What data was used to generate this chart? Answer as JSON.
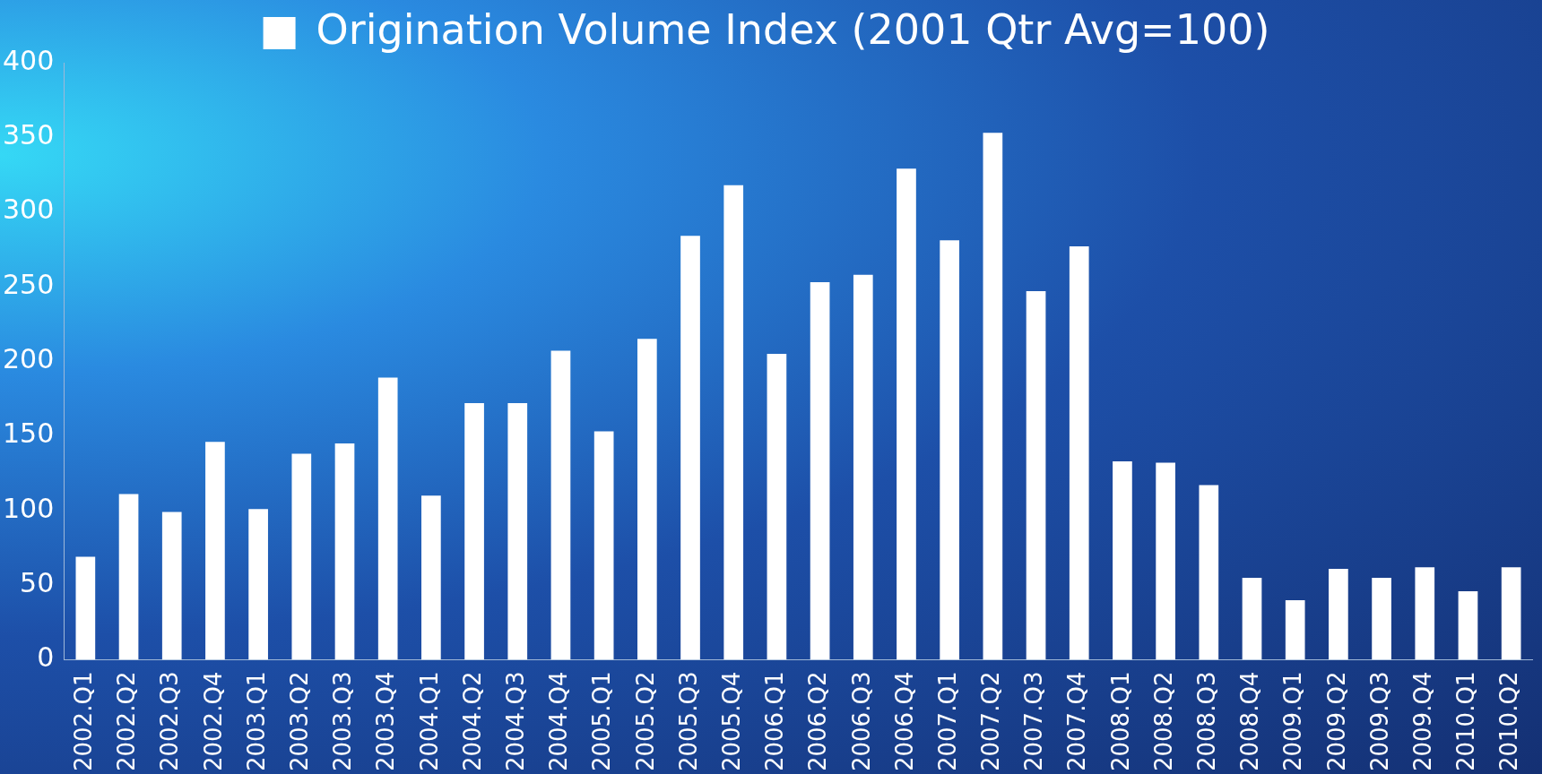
{
  "chart_data": {
    "type": "bar",
    "categories": [
      "2002.Q1",
      "2002.Q2",
      "2002.Q3",
      "2002.Q4",
      "2003.Q1",
      "2003.Q2",
      "2003.Q3",
      "2003.Q4",
      "2004.Q1",
      "2004.Q2",
      "2004.Q3",
      "2004.Q4",
      "2005.Q1",
      "2005.Q2",
      "2005.Q3",
      "2005.Q4",
      "2006.Q1",
      "2006.Q2",
      "2006.Q3",
      "2006.Q4",
      "2007.Q1",
      "2007.Q2",
      "2007.Q3",
      "2007.Q4",
      "2008.Q1",
      "2008.Q2",
      "2008.Q3",
      "2008.Q4",
      "2009.Q1",
      "2009.Q2",
      "2009.Q3",
      "2009.Q4",
      "2010.Q1",
      "2010.Q2"
    ],
    "series": [
      {
        "name": "Origination Volume Index (2001 Qtr Avg=100)",
        "color": "#ffffff",
        "values": [
          69,
          111,
          99,
          146,
          101,
          138,
          145,
          189,
          110,
          172,
          172,
          207,
          153,
          215,
          284,
          318,
          205,
          253,
          258,
          329,
          281,
          353,
          247,
          277,
          133,
          132,
          117,
          55,
          40,
          61,
          55,
          62,
          46,
          62
        ]
      }
    ],
    "ylim": [
      0,
      400
    ],
    "yticks": [
      0,
      50,
      100,
      150,
      200,
      250,
      300,
      350,
      400
    ],
    "grid": false,
    "legend": "top"
  }
}
